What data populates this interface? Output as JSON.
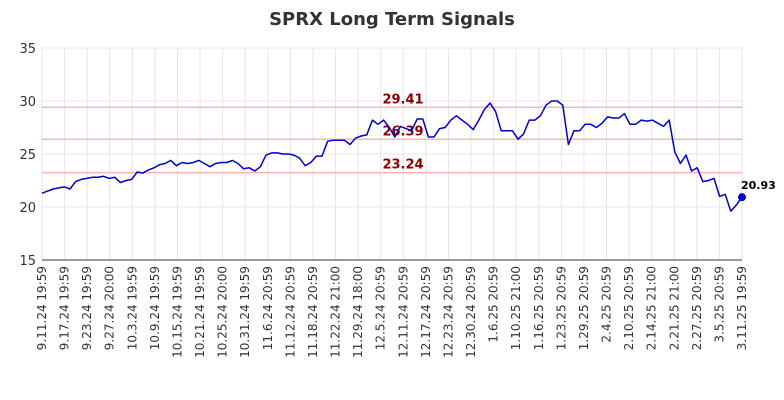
{
  "chart_data": {
    "type": "line",
    "title": "SPRX Long Term Signals",
    "xlabel": "",
    "ylabel": "",
    "ylim": [
      15,
      35
    ],
    "yticks": [
      15,
      20,
      25,
      30,
      35
    ],
    "grid": true,
    "x_tick_labels": [
      "9.11.24 19:59",
      "9.17.24 19:59",
      "9.23.24 19:59",
      "9.27.24 20:00",
      "10.3.24 19:59",
      "10.9.24 19:59",
      "10.15.24 19:59",
      "10.21.24 19:59",
      "10.25.24 20:00",
      "10.31.24 19:59",
      "11.6.24 20:59",
      "11.12.24 20:59",
      "11.18.24 20:59",
      "11.22.24 21:00",
      "11.29.24 18:00",
      "12.5.24 20:59",
      "12.11.24 20:59",
      "12.17.24 20:59",
      "12.23.24 20:59",
      "12.30.24 20:59",
      "1.6.25 20:59",
      "1.10.25 21:00",
      "1.16.25 20:59",
      "1.23.25 20:59",
      "1.29.25 20:59",
      "2.4.25 20:59",
      "2.10.25 20:59",
      "2.14.25 21:00",
      "2.21.25 21:00",
      "2.27.25 20:59",
      "3.5.25 20:59",
      "3.11.25 19:59"
    ],
    "levels": [
      {
        "value": 29.41,
        "label": "29.41",
        "color": "#ffb3b3"
      },
      {
        "value": 26.39,
        "label": "26.39",
        "color": "#ffb3b3"
      },
      {
        "value": 23.24,
        "label": "23.24",
        "color": "#ffb3b3"
      }
    ],
    "series": [
      {
        "color": "#0000cc",
        "values": [
          21.3,
          21.5,
          21.7,
          21.8,
          21.9,
          21.7,
          22.4,
          22.6,
          22.7,
          22.8,
          22.8,
          22.9,
          22.7,
          22.8,
          22.3,
          22.5,
          22.6,
          23.3,
          23.2,
          23.5,
          23.7,
          24.0,
          24.1,
          24.4,
          23.9,
          24.2,
          24.1,
          24.2,
          24.4,
          24.1,
          23.8,
          24.1,
          24.2,
          24.2,
          24.4,
          24.1,
          23.6,
          23.7,
          23.4,
          23.8,
          24.9,
          25.1,
          25.1,
          25.0,
          25.0,
          24.9,
          24.6,
          23.9,
          24.2,
          24.8,
          24.8,
          26.2,
          26.3,
          26.3,
          26.3,
          25.9,
          26.5,
          26.7,
          26.8,
          28.2,
          27.8,
          28.2,
          27.5,
          26.6,
          27.6,
          27.4,
          27.2,
          28.3,
          28.3,
          26.6,
          26.6,
          27.4,
          27.5,
          28.2,
          28.6,
          28.2,
          27.8,
          27.3,
          28.2,
          29.2,
          29.8,
          29.0,
          27.2,
          27.2,
          27.2,
          26.4,
          26.9,
          28.2,
          28.2,
          28.6,
          29.6,
          30.0,
          30.0,
          29.6,
          25.9,
          27.2,
          27.2,
          27.8,
          27.8,
          27.5,
          27.9,
          28.5,
          28.4,
          28.4,
          28.8,
          27.8,
          27.8,
          28.2,
          28.1,
          28.2,
          27.9,
          27.6,
          28.2,
          25.2,
          24.1,
          24.9,
          23.4,
          23.7,
          22.4,
          22.5,
          22.7,
          21.0,
          21.2,
          19.6,
          20.2,
          20.93
        ]
      }
    ],
    "last_value_label": "20.93"
  }
}
